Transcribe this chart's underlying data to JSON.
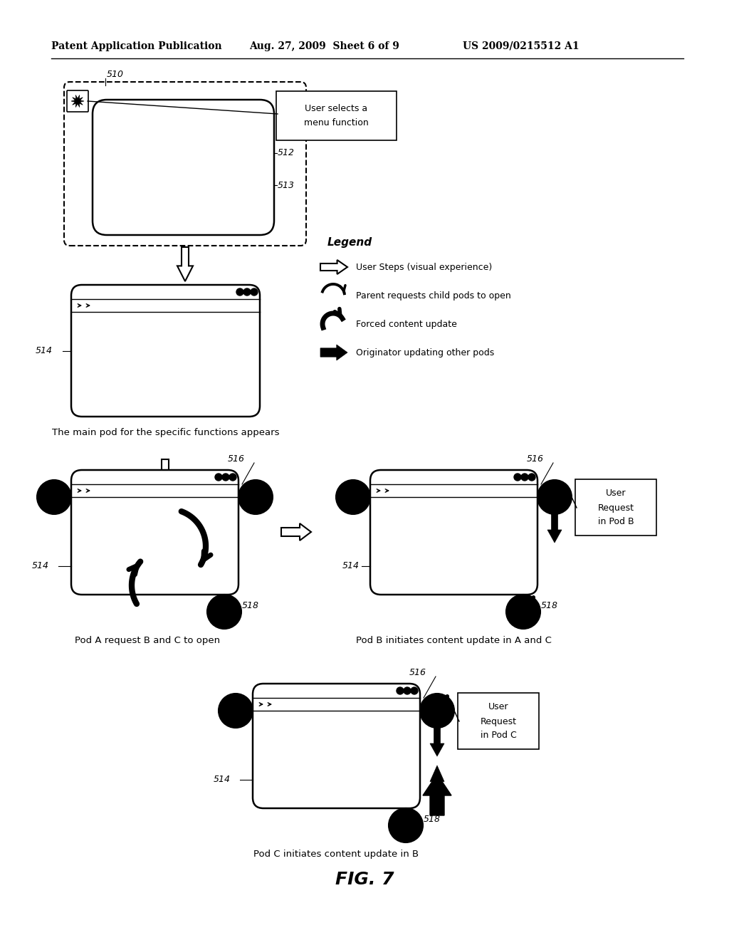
{
  "header_left": "Patent Application Publication",
  "header_mid": "Aug. 27, 2009  Sheet 6 of 9",
  "header_right": "US 2009/0215512 A1",
  "fig_label": "FIG. 7",
  "legend_title": "Legend",
  "legend_items": [
    "User Steps (visual experience)",
    "Parent requests child pods to open",
    "Forced content update",
    "Originator updating other pods"
  ],
  "caption1": "The main pod for the specific functions appears",
  "caption2": "Pod A request B and C to open",
  "caption3": "Pod B initiates content update in A and C",
  "caption4": "Pod C initiates content update in B",
  "bg_color": "#ffffff"
}
